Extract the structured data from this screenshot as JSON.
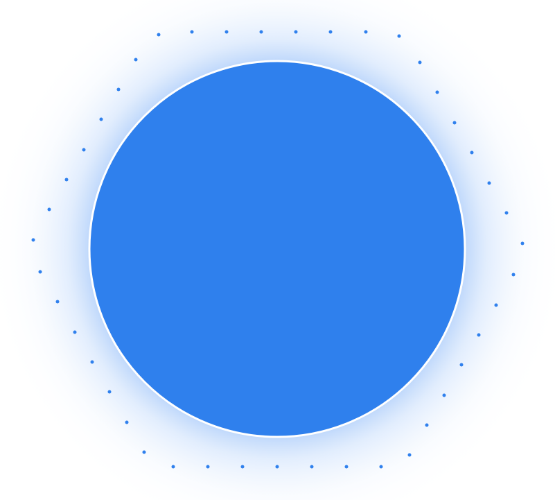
{
  "colors": {
    "circle_fill": "#2F80ED",
    "circle_border": "#FFFFFF",
    "dot": "#2F80ED",
    "glow": "#5B9BF5"
  },
  "icon": "dotted-hexagon-with-blue-circle"
}
